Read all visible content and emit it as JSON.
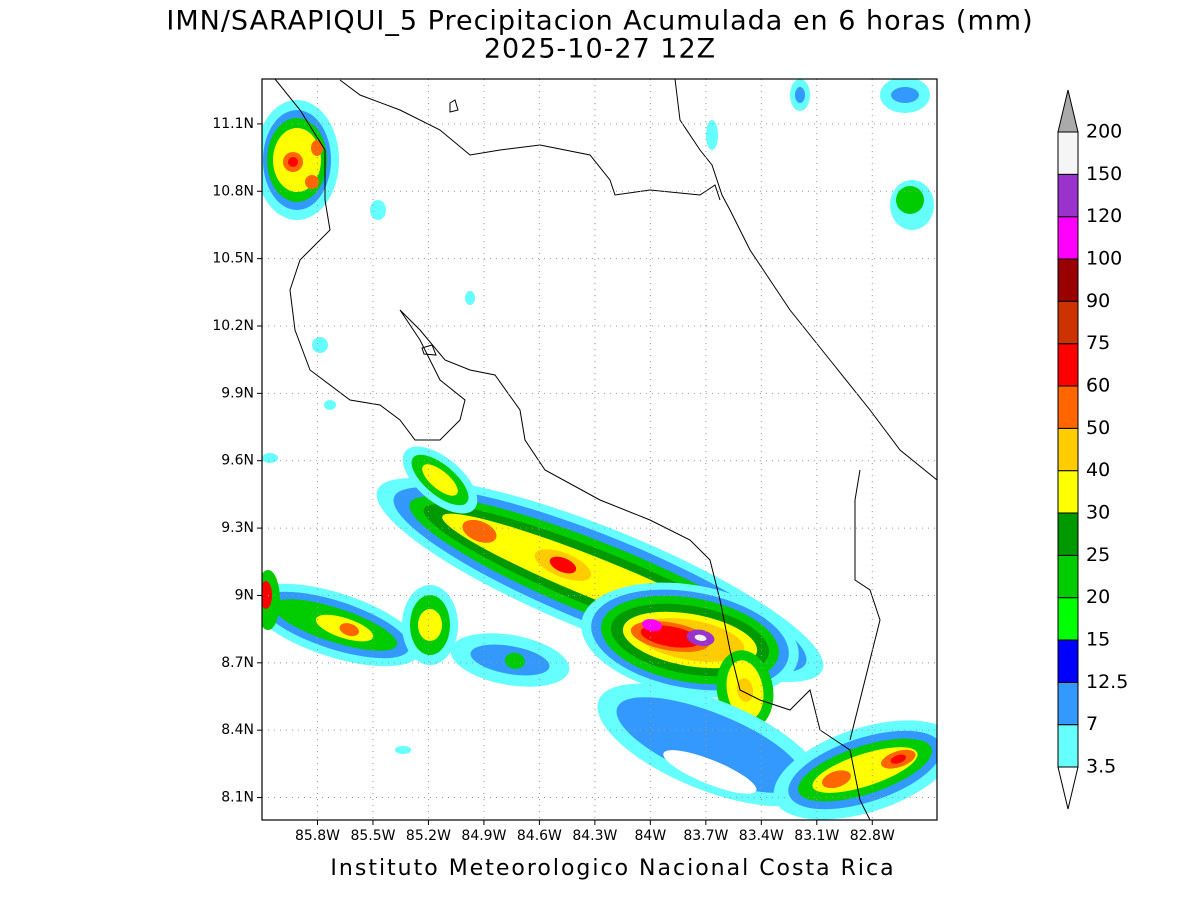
{
  "header": {
    "title": "IMN/SARAPIQUI_5 Precipitacion Acumulada en 6 horas (mm)",
    "subtitle": "2025-10-27 12Z"
  },
  "map": {
    "lonlim": [
      -86.1,
      -82.45
    ],
    "latlim": [
      8.0,
      11.3
    ],
    "grid": true,
    "lat_ticks": [
      {
        "value": 8.1,
        "label": "8.1N"
      },
      {
        "value": 8.4,
        "label": "8.4N"
      },
      {
        "value": 8.7,
        "label": "8.7N"
      },
      {
        "value": 9,
        "label": "9N"
      },
      {
        "value": 9.3,
        "label": "9.3N"
      },
      {
        "value": 9.6,
        "label": "9.6N"
      },
      {
        "value": 9.9,
        "label": "9.9N"
      },
      {
        "value": 10.2,
        "label": "10.2N"
      },
      {
        "value": 10.5,
        "label": "10.5N"
      },
      {
        "value": 10.8,
        "label": "10.8N"
      },
      {
        "value": 11.1,
        "label": "11.1N"
      }
    ],
    "lon_ticks": [
      {
        "value": -85.8,
        "label": "85.8W"
      },
      {
        "value": -85.5,
        "label": "85.5W"
      },
      {
        "value": -85.2,
        "label": "85.2W"
      },
      {
        "value": -84.9,
        "label": "84.9W"
      },
      {
        "value": -84.6,
        "label": "84.6W"
      },
      {
        "value": -84.3,
        "label": "84.3W"
      },
      {
        "value": -84,
        "label": "84W"
      },
      {
        "value": -83.7,
        "label": "83.7W"
      },
      {
        "value": -83.4,
        "label": "83.4W"
      },
      {
        "value": -83.1,
        "label": "83.1W"
      },
      {
        "value": -82.8,
        "label": "82.8W"
      }
    ]
  },
  "colorbar": {
    "levels": [
      3.5,
      7,
      12.5,
      15,
      20,
      25,
      30,
      40,
      50,
      60,
      75,
      90,
      100,
      120,
      150,
      200
    ],
    "colors": [
      "#66ffff",
      "#3399ff",
      "#0000ff",
      "#00ff00",
      "#00cc00",
      "#009900",
      "#ffff00",
      "#ffcc00",
      "#ff6600",
      "#ff0000",
      "#cc3300",
      "#990000",
      "#ff00ff",
      "#9933cc",
      "#f5f5f5"
    ],
    "under_color": "#ffffff",
    "over_color": "#aaaaaa"
  },
  "footer": "Instituto Meteorologico Nacional Costa Rica"
}
